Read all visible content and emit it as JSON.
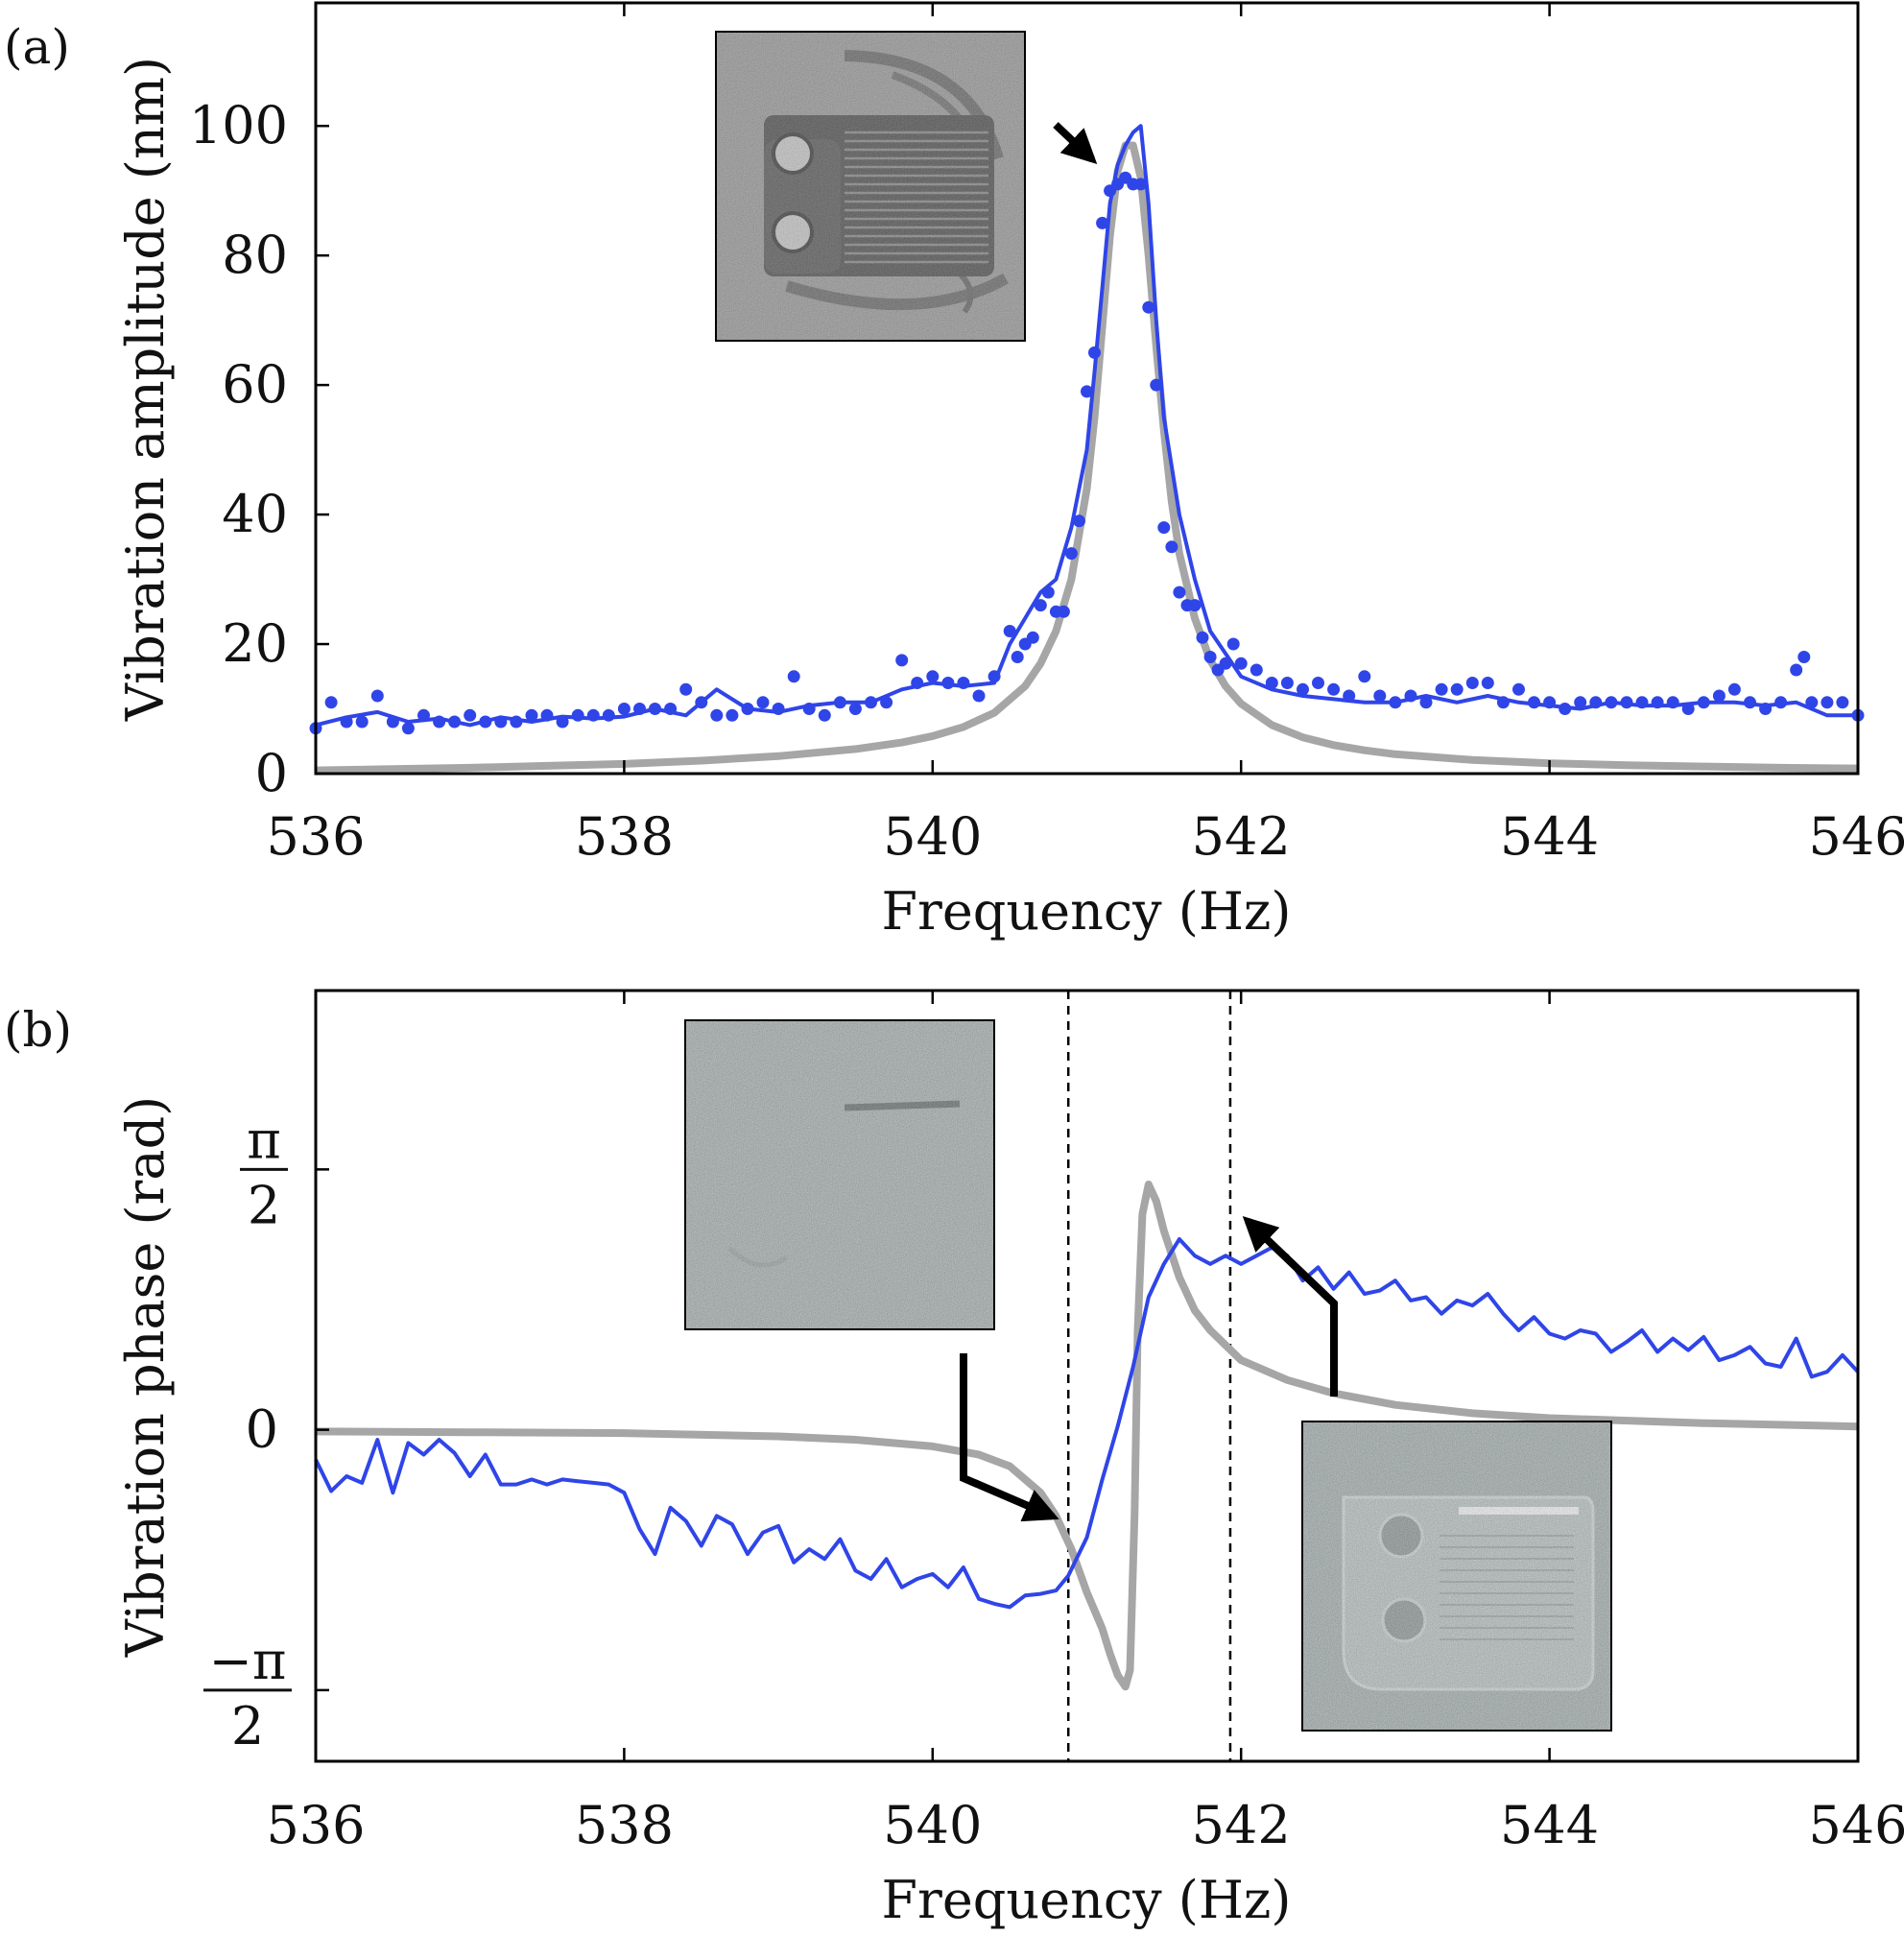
{
  "chart_data": [
    {
      "panel_label": "(a)",
      "type": "line",
      "xlabel": "Frequency (Hz)",
      "ylabel": "Vibration amplitude (nm)",
      "xlim": [
        536,
        546
      ],
      "ylim": [
        0,
        119
      ],
      "xticks": [
        "536",
        "538",
        "540",
        "542",
        "544",
        "546"
      ],
      "yticks": [
        "0",
        "20",
        "40",
        "60",
        "80",
        "100"
      ],
      "grid": false,
      "colors": {
        "measured": "#2f45e8",
        "model": "#a6a6a6"
      },
      "series": [
        {
          "kind": "fit-line",
          "x": [
            536.0,
            536.2,
            536.4,
            536.6,
            536.8,
            537.0,
            537.2,
            537.4,
            537.6,
            537.8,
            538.0,
            538.2,
            538.4,
            538.6,
            538.8,
            539.0,
            539.2,
            539.4,
            539.6,
            539.8,
            540.0,
            540.2,
            540.4,
            540.5,
            540.6,
            540.7,
            540.8,
            540.9,
            541.0,
            541.05,
            541.1,
            541.15,
            541.2,
            541.25,
            541.3,
            541.35,
            541.4,
            541.45,
            541.5,
            541.6,
            541.7,
            541.8,
            542.0,
            542.2,
            542.4,
            542.6,
            542.8,
            543.0,
            543.2,
            543.4,
            543.6,
            543.8,
            544.0,
            544.2,
            544.4,
            544.6,
            544.8,
            545.0,
            545.2,
            545.4,
            545.6,
            545.8,
            546.0
          ],
          "y": [
            7.5,
            8.7,
            9.5,
            8,
            8.5,
            7.5,
            8.7,
            8,
            8.8,
            8.5,
            8.8,
            10,
            9,
            13,
            10,
            9.5,
            10.5,
            11,
            11,
            13,
            14,
            13.5,
            14,
            20,
            24,
            28,
            30,
            38,
            50,
            62,
            75,
            88,
            94,
            97,
            99,
            100,
            88,
            70,
            55,
            40,
            30,
            22,
            15,
            13,
            12,
            11.5,
            11,
            11,
            12,
            11,
            12,
            11,
            10.5,
            10,
            11,
            10.5,
            10.5,
            11,
            11,
            10.5,
            11,
            9,
            9
          ]
        },
        {
          "kind": "model-curve",
          "x": [
            536.0,
            536.5,
            537.0,
            537.5,
            538.0,
            538.5,
            539.0,
            539.5,
            539.8,
            540.0,
            540.2,
            540.4,
            540.6,
            540.7,
            540.8,
            540.9,
            541.0,
            541.05,
            541.1,
            541.15,
            541.2,
            541.25,
            541.3,
            541.35,
            541.4,
            541.45,
            541.5,
            541.55,
            541.6,
            541.7,
            541.8,
            541.9,
            542.0,
            542.2,
            542.4,
            542.6,
            542.8,
            543.0,
            543.5,
            544.0,
            544.5,
            545.0,
            545.5,
            546.0
          ],
          "y": [
            0.5,
            0.7,
            0.9,
            1.2,
            1.5,
            2,
            2.7,
            3.8,
            4.8,
            5.8,
            7.2,
            9.4,
            13.5,
            17,
            22,
            30,
            44,
            55,
            69,
            83,
            93,
            97,
            97,
            92,
            80,
            66,
            53,
            42,
            34,
            24,
            17.5,
            13.5,
            10.8,
            7.5,
            5.6,
            4.4,
            3.6,
            3,
            2.1,
            1.6,
            1.3,
            1.1,
            0.9,
            0.8
          ]
        },
        {
          "kind": "points",
          "x": [
            536.0,
            536.1,
            536.2,
            536.3,
            536.4,
            536.5,
            536.6,
            536.7,
            536.8,
            536.9,
            537.0,
            537.1,
            537.2,
            537.3,
            537.4,
            537.5,
            537.6,
            537.7,
            537.8,
            537.9,
            538.0,
            538.1,
            538.2,
            538.3,
            538.4,
            538.5,
            538.6,
            538.7,
            538.8,
            538.9,
            539.0,
            539.1,
            539.2,
            539.3,
            539.4,
            539.5,
            539.6,
            539.7,
            539.8,
            539.9,
            540.0,
            540.1,
            540.2,
            540.3,
            540.4,
            540.5,
            540.55,
            540.6,
            540.65,
            540.7,
            540.75,
            540.8,
            540.85,
            540.9,
            540.95,
            541.0,
            541.05,
            541.1,
            541.15,
            541.2,
            541.25,
            541.3,
            541.35,
            541.4,
            541.45,
            541.5,
            541.55,
            541.6,
            541.65,
            541.7,
            541.75,
            541.8,
            541.85,
            541.9,
            541.95,
            542.0,
            542.1,
            542.2,
            542.3,
            542.4,
            542.5,
            542.6,
            542.7,
            542.8,
            542.9,
            543.0,
            543.1,
            543.2,
            543.3,
            543.4,
            543.5,
            543.6,
            543.7,
            543.8,
            543.9,
            544.0,
            544.1,
            544.2,
            544.3,
            544.4,
            544.5,
            544.6,
            544.7,
            544.8,
            544.9,
            545.0,
            545.1,
            545.2,
            545.3,
            545.4,
            545.5,
            545.6,
            545.65,
            545.7,
            545.8,
            545.9,
            546.0
          ],
          "y": [
            7,
            11,
            8,
            8,
            12,
            8,
            7,
            9,
            8,
            8,
            9,
            8,
            8,
            8,
            9,
            9,
            8,
            9,
            9,
            9,
            10,
            10,
            10,
            10,
            13,
            11,
            9,
            9,
            10,
            11,
            10,
            15,
            10,
            9,
            11,
            10,
            11,
            11,
            17.5,
            14,
            15,
            14,
            14,
            12,
            15,
            22,
            18,
            20,
            21,
            26,
            28,
            25,
            25,
            34,
            39,
            59,
            65,
            85,
            90,
            91,
            92,
            91,
            91,
            72,
            60,
            38,
            35,
            28,
            26,
            26,
            21,
            18,
            16,
            17,
            20,
            17,
            16,
            14,
            14,
            13,
            14,
            13,
            12,
            15,
            12,
            11,
            12,
            11,
            13,
            13,
            14,
            14,
            11,
            13,
            11,
            11,
            10,
            11,
            11,
            11,
            11,
            11,
            11,
            11,
            10,
            11,
            12,
            13,
            11,
            10,
            11,
            16,
            18,
            11,
            11,
            11,
            9
          ]
        }
      ]
    },
    {
      "panel_label": "(b)",
      "type": "line",
      "xlabel": "Frequency (Hz)",
      "ylabel": "Vibration phase (rad)",
      "xlim": [
        536,
        546
      ],
      "ylim": [
        -2.0,
        2.65
      ],
      "xticks": [
        "536",
        "538",
        "540",
        "542",
        "544",
        "546"
      ],
      "ytick_values": [
        -1.5708,
        0,
        1.5708
      ],
      "ytick_labels": {
        "top_num": "π",
        "top_den": "2",
        "zero": "0",
        "bot_num": "−π",
        "bot_den": "2"
      },
      "grid": false,
      "vlines": [
        540.88,
        541.93
      ],
      "colors": {
        "measured": "#2f45e8",
        "model": "#a6a6a6"
      },
      "series": [
        {
          "kind": "measured-line",
          "x": [
            536.0,
            536.1,
            536.2,
            536.3,
            536.4,
            536.5,
            536.6,
            536.7,
            536.8,
            536.9,
            537.0,
            537.1,
            537.2,
            537.3,
            537.4,
            537.5,
            537.6,
            537.7,
            537.8,
            537.9,
            538.0,
            538.1,
            538.2,
            538.3,
            538.4,
            538.5,
            538.6,
            538.7,
            538.8,
            538.9,
            539.0,
            539.1,
            539.2,
            539.3,
            539.4,
            539.5,
            539.6,
            539.7,
            539.8,
            539.9,
            540.0,
            540.1,
            540.2,
            540.3,
            540.4,
            540.5,
            540.6,
            540.7,
            540.8,
            540.88,
            541.0,
            541.1,
            541.2,
            541.3,
            541.4,
            541.5,
            541.6,
            541.7,
            541.8,
            541.9,
            542.0,
            542.1,
            542.2,
            542.3,
            542.4,
            542.5,
            542.6,
            542.7,
            542.8,
            542.9,
            543.0,
            543.1,
            543.2,
            543.3,
            543.4,
            543.5,
            543.6,
            543.7,
            543.8,
            543.9,
            544.0,
            544.1,
            544.2,
            544.3,
            544.4,
            544.5,
            544.6,
            544.7,
            544.8,
            544.9,
            545.0,
            545.1,
            545.2,
            545.3,
            545.4,
            545.5,
            545.6,
            545.7,
            545.8,
            545.9,
            546.0
          ],
          "y": [
            -0.18,
            -0.37,
            -0.28,
            -0.32,
            -0.06,
            -0.38,
            -0.08,
            -0.15,
            -0.06,
            -0.14,
            -0.28,
            -0.15,
            -0.33,
            -0.33,
            -0.3,
            -0.33,
            -0.3,
            -0.31,
            -0.32,
            -0.33,
            -0.38,
            -0.6,
            -0.75,
            -0.47,
            -0.55,
            -0.7,
            -0.52,
            -0.57,
            -0.75,
            -0.62,
            -0.58,
            -0.8,
            -0.72,
            -0.78,
            -0.66,
            -0.85,
            -0.9,
            -0.78,
            -0.95,
            -0.9,
            -0.87,
            -0.95,
            -0.83,
            -1.02,
            -1.05,
            -1.07,
            -1.0,
            -0.99,
            -0.97,
            -0.88,
            -0.65,
            -0.3,
            0.02,
            0.38,
            0.8,
            1.0,
            1.15,
            1.05,
            1.0,
            1.05,
            1.0,
            1.05,
            1.1,
            1.05,
            0.9,
            0.98,
            0.85,
            0.95,
            0.82,
            0.84,
            0.9,
            0.78,
            0.8,
            0.7,
            0.78,
            0.75,
            0.82,
            0.7,
            0.6,
            0.68,
            0.58,
            0.55,
            0.6,
            0.58,
            0.47,
            0.53,
            0.6,
            0.47,
            0.55,
            0.48,
            0.56,
            0.42,
            0.45,
            0.5,
            0.4,
            0.38,
            0.55,
            0.32,
            0.35,
            0.45,
            0.35
          ]
        },
        {
          "kind": "model-curve",
          "x": [
            536.0,
            537.0,
            538.0,
            539.0,
            539.5,
            540.0,
            540.3,
            540.5,
            540.7,
            540.8,
            540.9,
            541.0,
            541.1,
            541.15,
            541.2,
            541.25,
            541.28,
            541.31,
            541.33,
            541.36,
            541.4,
            541.45,
            541.5,
            541.6,
            541.7,
            541.8,
            542.0,
            542.3,
            542.6,
            543.0,
            543.5,
            544.0,
            545.0,
            546.0
          ],
          "y": [
            -0.01,
            -0.015,
            -0.02,
            -0.04,
            -0.06,
            -0.1,
            -0.15,
            -0.22,
            -0.38,
            -0.52,
            -0.72,
            -0.98,
            -1.2,
            -1.35,
            -1.48,
            -1.55,
            -1.45,
            -0.5,
            0.6,
            1.3,
            1.48,
            1.38,
            1.2,
            0.92,
            0.72,
            0.6,
            0.42,
            0.3,
            0.22,
            0.15,
            0.1,
            0.07,
            0.04,
            0.02
          ]
        }
      ]
    }
  ]
}
